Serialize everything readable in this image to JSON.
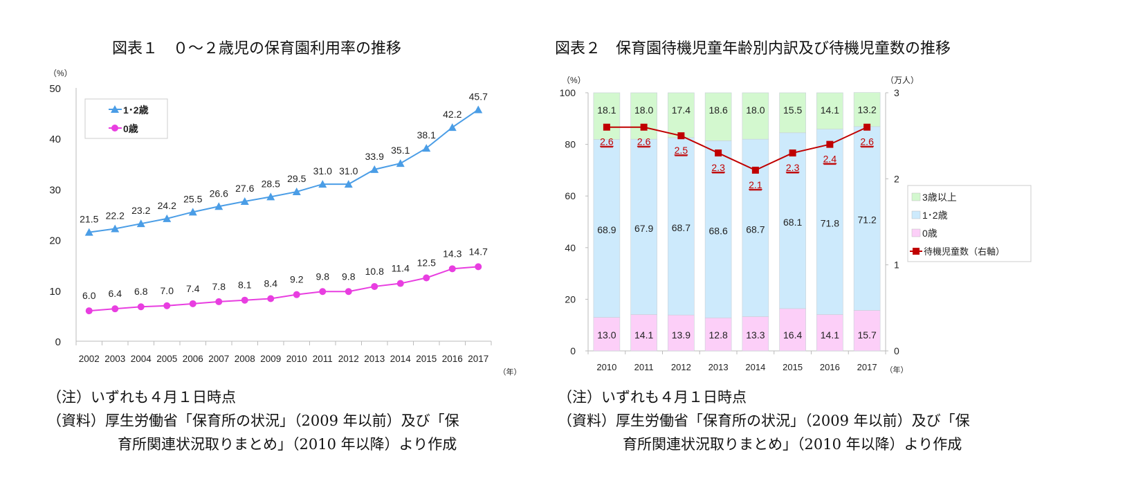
{
  "chart_data": [
    {
      "type": "line",
      "title": "図表１　０～２歳児の保育園利用率の推移",
      "ylabel": "（%）",
      "xlabel": "（年）",
      "ylim": [
        0,
        50
      ],
      "yticks": [
        0,
        10,
        20,
        30,
        40,
        50
      ],
      "categories": [
        "2002",
        "2003",
        "2004",
        "2005",
        "2006",
        "2007",
        "2008",
        "2009",
        "2010",
        "2011",
        "2012",
        "2013",
        "2014",
        "2015",
        "2016",
        "2017"
      ],
      "legend_position": "top-left",
      "grid": false,
      "series": [
        {
          "name": "1･2歳",
          "marker": "triangle",
          "color": "#4a9de6",
          "values": [
            21.5,
            22.2,
            23.2,
            24.2,
            25.5,
            26.6,
            27.6,
            28.5,
            29.5,
            31.0,
            31.0,
            33.9,
            35.1,
            38.1,
            42.2,
            45.7
          ],
          "labels": [
            "21.5",
            "22.2",
            "23.2",
            "24.2",
            "25.5",
            "26.6",
            "27.6",
            "28.5",
            "29.5",
            "31.0",
            "31.0",
            "33.9",
            "35.1",
            "38.1",
            "42.2",
            "45.7"
          ]
        },
        {
          "name": "0歳",
          "marker": "circle",
          "color": "#e83ee0",
          "values": [
            6.0,
            6.4,
            6.8,
            7.0,
            7.4,
            7.8,
            8.1,
            8.4,
            9.2,
            9.8,
            9.8,
            10.8,
            11.4,
            12.5,
            14.3,
            14.7
          ],
          "labels": [
            "6.0",
            "6.4",
            "6.8",
            "7.0",
            "7.4",
            "7.8",
            "8.1",
            "8.4",
            "9.2",
            "9.8",
            "9.8",
            "10.8",
            "11.4",
            "12.5",
            "14.3",
            "14.7"
          ]
        }
      ]
    },
    {
      "type": "bar",
      "stacked": true,
      "title": "図表２　保育園待機児童年齢別内訳及び待機児童数の推移",
      "ylabel": "（%）",
      "y2label": "（万人）",
      "xlabel": "（年）",
      "ylim": [
        0,
        100
      ],
      "yticks": [
        0,
        20,
        40,
        60,
        80,
        100
      ],
      "y2lim": [
        0,
        3
      ],
      "y2ticks": [
        0,
        1,
        2,
        3
      ],
      "categories": [
        "2010",
        "2011",
        "2012",
        "2013",
        "2014",
        "2015",
        "2016",
        "2017"
      ],
      "legend_position": "right",
      "grid": false,
      "series": [
        {
          "name": "0歳",
          "color": "#fccff8",
          "values": [
            13.0,
            14.1,
            13.9,
            12.8,
            13.3,
            16.4,
            14.1,
            15.7
          ],
          "labels": [
            "13.0",
            "14.1",
            "13.9",
            "12.8",
            "13.3",
            "16.4",
            "14.1",
            "15.7"
          ]
        },
        {
          "name": "1･2歳",
          "color": "#cdeafc",
          "values": [
            68.9,
            67.9,
            68.7,
            68.6,
            68.7,
            68.1,
            71.8,
            71.2
          ],
          "labels": [
            "68.9",
            "67.9",
            "68.7",
            "68.6",
            "68.7",
            "68.1",
            "71.8",
            "71.2"
          ]
        },
        {
          "name": "3歳以上",
          "color": "#d3f8cf",
          "values": [
            18.1,
            18.0,
            17.4,
            18.6,
            18.0,
            15.5,
            14.1,
            13.2
          ],
          "labels": [
            "18.1",
            "18.0",
            "17.4",
            "18.6",
            "18.0",
            "15.5",
            "14.1",
            "13.2"
          ]
        },
        {
          "name": "待機児童数（右軸）",
          "type": "line",
          "axis": "right",
          "marker": "square",
          "color": "#c00000",
          "values": [
            2.6,
            2.6,
            2.5,
            2.3,
            2.1,
            2.3,
            2.4,
            2.6
          ],
          "labels": [
            "2.6",
            "2.6",
            "2.5",
            "2.3",
            "2.1",
            "2.3",
            "2.4",
            "2.6"
          ]
        }
      ]
    }
  ],
  "notes": {
    "left": {
      "line1": "（注）いずれも４月１日時点",
      "line2": "（資料）厚生労働省「保育所の状況」（2009 年以前）及び「保",
      "line3": "育所関連状況取りまとめ」（2010 年以降）より作成"
    },
    "right": {
      "line1": "（注）いずれも４月１日時点",
      "line2": "（資料）厚生労働省「保育所の状況」（2009 年以前）及び「保",
      "line3": "育所関連状況取りまとめ」（2010 年以降）より作成"
    }
  }
}
